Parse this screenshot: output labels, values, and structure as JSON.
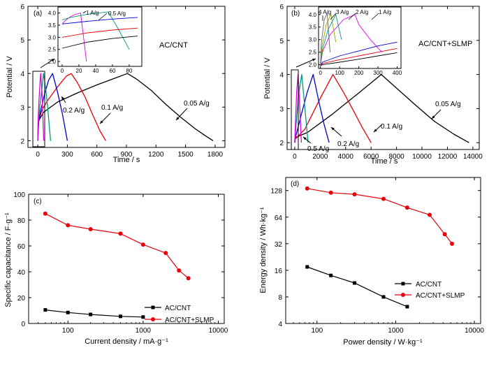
{
  "chart_data": [
    {
      "panel": "(a)",
      "type": "line",
      "label": "AC/CNT",
      "xlabel": "Time / s",
      "ylabel": "Potential / V",
      "xlim": [
        -100,
        1900
      ],
      "ylim": [
        1.8,
        6.0
      ],
      "xticks": [
        0,
        300,
        600,
        900,
        1200,
        1500,
        1800
      ],
      "yticks": [
        2,
        3,
        4,
        5,
        6
      ],
      "series": [
        {
          "name": "0.05 A/g",
          "color": "#000000",
          "x": [
            0,
            10,
            60,
            200,
            400,
            600,
            800,
            910,
            1000,
            1150,
            1300,
            1450,
            1600,
            1700,
            1780
          ],
          "y": [
            2.0,
            2.6,
            2.85,
            3.15,
            3.42,
            3.66,
            3.88,
            4.0,
            3.84,
            3.5,
            3.08,
            2.7,
            2.35,
            2.15,
            2.0
          ]
        },
        {
          "name": "0.1 A/g",
          "color": "#e8000b",
          "x": [
            0,
            8,
            40,
            100,
            200,
            290,
            340,
            400,
            480,
            560,
            630,
            690
          ],
          "y": [
            2.0,
            2.55,
            2.9,
            3.2,
            3.6,
            3.92,
            4.0,
            3.74,
            3.3,
            2.75,
            2.3,
            2.0
          ]
        },
        {
          "name": "0.2 A/g",
          "color": "#0000cc",
          "x": [
            0,
            6,
            30,
            70,
            110,
            150,
            200,
            250,
            300
          ],
          "y": [
            2.0,
            2.5,
            2.9,
            3.4,
            3.8,
            4.0,
            3.45,
            2.8,
            2.0
          ]
        },
        {
          "name": "0.5 A/g",
          "color": "#009a80",
          "x": [
            0,
            5,
            20,
            40,
            58,
            80,
            100,
            130
          ],
          "y": [
            2.0,
            2.5,
            3.0,
            3.5,
            4.0,
            3.55,
            3.0,
            2.0
          ]
        },
        {
          "name": "1 A/g",
          "color": "#e000e0",
          "x": [
            0,
            3,
            12,
            24,
            30,
            45,
            60
          ],
          "y": [
            2.0,
            2.6,
            3.2,
            3.8,
            4.0,
            3.3,
            2.0
          ]
        }
      ],
      "annotations": [
        "0.05 A/g",
        "0.1 A/g",
        "0.2 A/g"
      ],
      "inset": {
        "xlim": [
          -5,
          95
        ],
        "ylim": [
          1.8,
          4.25
        ],
        "xticks": [
          0,
          20,
          40,
          60,
          80
        ],
        "yticks": [
          2.0,
          2.5,
          3.0,
          3.5,
          4.0
        ],
        "labels": [
          "1 A/g",
          "0.5 A/g"
        ],
        "series": [
          {
            "color": "#e000e0",
            "x": [
              0,
              4,
              10,
              16,
              22,
              29
            ],
            "y": [
              3.55,
              3.7,
              3.85,
              3.95,
              4.0,
              2.0
            ]
          },
          {
            "color": "#009a80",
            "x": [
              0,
              10,
              30,
              55,
              66,
              80
            ],
            "y": [
              3.72,
              3.82,
              3.95,
              4.05,
              3.4,
              2.5
            ]
          },
          {
            "color": "#0000cc",
            "x": [
              0,
              30,
              60,
              90
            ],
            "y": [
              3.55,
              3.66,
              3.75,
              3.82
            ]
          },
          {
            "color": "#e8000b",
            "x": [
              0,
              30,
              60,
              90
            ],
            "y": [
              3.0,
              3.18,
              3.3,
              3.38
            ]
          },
          {
            "color": "#000000",
            "x": [
              0,
              30,
              60,
              90
            ],
            "y": [
              2.55,
              2.8,
              2.95,
              3.05
            ]
          }
        ]
      }
    },
    {
      "panel": "(b)",
      "type": "line",
      "label": "AC/CNT+SLMP",
      "xlabel": "Time / s",
      "ylabel": "Potential / V",
      "xlim": [
        -600,
        14500
      ],
      "ylim": [
        1.8,
        6.0
      ],
      "xticks": [
        0,
        2000,
        4000,
        6000,
        8000,
        10000,
        12000,
        14000
      ],
      "yticks": [
        2,
        3,
        4,
        5,
        6
      ],
      "series": [
        {
          "name": "0.05 A/g",
          "color": "#000000",
          "x": [
            0,
            30,
            1000,
            3000,
            5000,
            6800,
            8000,
            9500,
            11000,
            12500,
            13700
          ],
          "y": [
            2.0,
            2.15,
            2.3,
            2.85,
            3.45,
            4.0,
            3.6,
            3.1,
            2.62,
            2.25,
            2.0
          ]
        },
        {
          "name": "0.1 A/g",
          "color": "#e8000b",
          "x": [
            0,
            30,
            800,
            2000,
            3000,
            3800,
            4600,
            5300,
            6000
          ],
          "y": [
            2.0,
            2.1,
            2.4,
            3.3,
            4.0,
            3.5,
            2.95,
            2.45,
            2.0
          ]
        },
        {
          "name": "0.2 A/g",
          "color": "#0000cc",
          "x": [
            0,
            20,
            500,
            1000,
            1450,
            1900,
            2300,
            2700
          ],
          "y": [
            2.0,
            2.1,
            2.8,
            3.5,
            4.0,
            3.2,
            2.55,
            2.0
          ]
        },
        {
          "name": "0.5 A/g",
          "color": "#009a80",
          "x": [
            0,
            10,
            300,
            550,
            800,
            1050
          ],
          "y": [
            2.0,
            2.1,
            3.4,
            4.0,
            3.0,
            2.0
          ]
        },
        {
          "name": "1 A/g",
          "color": "#e000e0",
          "x": [
            0,
            150,
            260,
            400,
            520
          ],
          "y": [
            2.0,
            3.5,
            4.0,
            3.0,
            2.0
          ]
        }
      ],
      "annotations": [
        "0.05 A/g",
        "0.1 A/g",
        "0.2 A/g",
        "0.5 A/g"
      ],
      "inset": {
        "xlim": [
          -10,
          420
        ],
        "ylim": [
          1.85,
          4.3
        ],
        "xticks": [
          0,
          100,
          200,
          300,
          400
        ],
        "yticks": [
          2.0,
          2.5,
          3.0,
          3.5,
          4.0
        ],
        "labels": [
          "4 A/g",
          "3 A/g",
          "2 A/g",
          "1 A/g"
        ],
        "series": [
          {
            "color": "#000000",
            "x": [
              0,
              10,
              100,
              200,
              300,
              400
            ],
            "y": [
              1.95,
              2.0,
              2.1,
              2.22,
              2.35,
              2.48
            ]
          },
          {
            "color": "#e8000b",
            "x": [
              0,
              10,
              100,
              200,
              300,
              400
            ],
            "y": [
              1.95,
              2.05,
              2.2,
              2.35,
              2.5,
              2.65
            ]
          },
          {
            "color": "#0000cc",
            "x": [
              0,
              10,
              100,
              200,
              300,
              400
            ],
            "y": [
              1.95,
              2.1,
              2.35,
              2.55,
              2.75,
              2.9
            ]
          },
          {
            "color": "#e000e0",
            "x": [
              0,
              10,
              50,
              120,
              180,
              200,
              260,
              320
            ],
            "y": [
              1.95,
              2.5,
              3.2,
              3.8,
              4.0,
              3.6,
              3.0,
              2.5
            ]
          },
          {
            "color": "#009a80",
            "x": [
              0,
              10,
              40,
              80,
              110
            ],
            "y": [
              1.95,
              2.6,
              3.4,
              4.0,
              3.0
            ]
          },
          {
            "color": "#9aa000",
            "x": [
              0,
              8,
              30,
              55,
              80
            ],
            "y": [
              1.95,
              2.7,
              3.6,
              4.0,
              2.9
            ]
          },
          {
            "color": "#606060",
            "x": [
              0,
              5,
              20,
              35,
              50
            ],
            "y": [
              1.95,
              2.9,
              3.8,
              4.05,
              2.5
            ]
          }
        ]
      }
    },
    {
      "panel": "(c)",
      "type": "line",
      "xlabel": "Current density / mA·g⁻¹",
      "ylabel": "Specific capacitance / F·g⁻¹",
      "xscale": "log",
      "xlim": [
        30,
        12000
      ],
      "ylim": [
        0,
        100
      ],
      "xticks": [
        100,
        1000,
        10000
      ],
      "yticks": [
        0,
        20,
        40,
        60,
        80,
        100
      ],
      "legend": "lower-right",
      "series": [
        {
          "name": "AC/CNT",
          "color": "#000000",
          "marker": "square",
          "x": [
            50,
            100,
            200,
            500,
            1000
          ],
          "y": [
            10.5,
            8.5,
            7,
            5.5,
            5
          ]
        },
        {
          "name": "AC/CNT+SLMP",
          "color": "#e8000b",
          "marker": "circle",
          "x": [
            50,
            100,
            200,
            500,
            1000,
            2000,
            3000,
            4000
          ],
          "y": [
            85,
            76,
            73,
            69.5,
            61,
            54.5,
            41,
            35
          ]
        }
      ]
    },
    {
      "panel": "(d)",
      "type": "line",
      "xlabel": "Power density / W·kg⁻¹",
      "ylabel": "Energy density / Wh·kg⁻¹",
      "xscale": "log",
      "yscale": "log",
      "xlim": [
        40,
        12000
      ],
      "ylim": [
        4,
        180
      ],
      "xticks": [
        100,
        1000,
        10000
      ],
      "yticks": [
        4,
        8,
        16,
        32,
        64,
        128
      ],
      "legend": "lower-left",
      "series": [
        {
          "name": "AC/CNT",
          "color": "#000000",
          "marker": "square",
          "x": [
            75,
            150,
            300,
            700,
            1400
          ],
          "y": [
            17.5,
            14,
            11.5,
            8,
            6.2
          ]
        },
        {
          "name": "AC/CNT+SLMP",
          "color": "#e8000b",
          "marker": "circle",
          "x": [
            75,
            150,
            300,
            700,
            1400,
            2700,
            4200,
            5200
          ],
          "y": [
            135,
            121,
            116,
            103,
            82,
            68,
            41,
            32
          ]
        }
      ]
    }
  ]
}
